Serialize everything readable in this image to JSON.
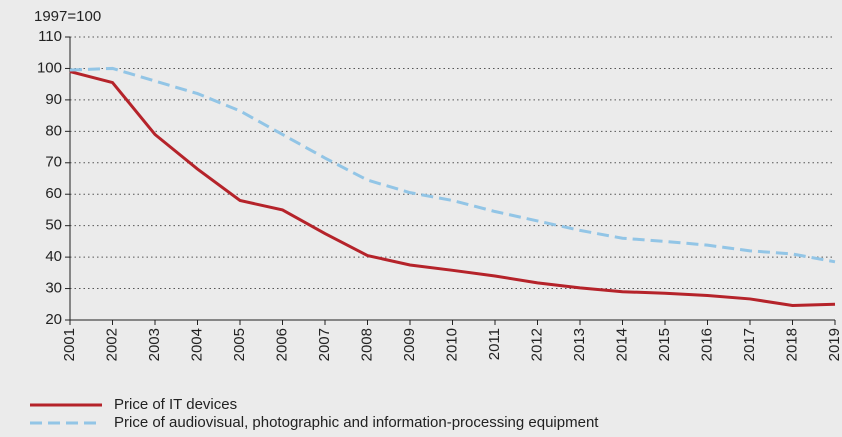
{
  "chart_data": {
    "type": "line",
    "subtitle": "1997=100",
    "categories": [
      "2001",
      "2002",
      "2003",
      "2004",
      "2005",
      "2006",
      "2007",
      "2008",
      "2009",
      "2010",
      "2011",
      "2012",
      "2013",
      "2014",
      "2015",
      "2016",
      "2017",
      "2018",
      "2019"
    ],
    "series": [
      {
        "name": "Price of IT devices",
        "color": "#b5232a",
        "dash": false,
        "values": [
          99,
          95.5,
          79,
          68,
          58,
          55,
          47.5,
          40.5,
          37.5,
          35.8,
          34,
          31.8,
          30.2,
          29,
          28.5,
          27.8,
          26.7,
          24.6,
          25
        ]
      },
      {
        "name": "Price of audiovisual, photographic and information-processing equipment",
        "color": "#92c5e6",
        "dash": true,
        "values": [
          99.5,
          100,
          96,
          92,
          86.5,
          79,
          71.5,
          64.5,
          60.5,
          58,
          54.5,
          51.5,
          48.5,
          46,
          45,
          43.8,
          42,
          41,
          38.5
        ]
      }
    ],
    "ylim": [
      20,
      110
    ],
    "yticks": [
      20,
      30,
      40,
      50,
      60,
      70,
      80,
      90,
      100,
      110
    ],
    "grid": true,
    "legend": "bottom"
  }
}
